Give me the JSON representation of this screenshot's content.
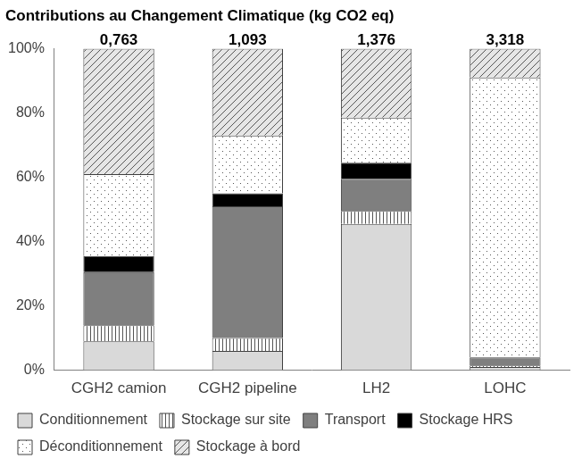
{
  "chart_data": {
    "type": "bar",
    "title": "Contributions au Changement Climatique (kg CO2 eq)",
    "categories": [
      "CGH2 camion",
      "CGH2 pipeline",
      "LH2",
      "LOHC"
    ],
    "totals": [
      0.763,
      1.093,
      1.376,
      3.318
    ],
    "total_labels": [
      "0,763",
      "1,093",
      "1,376",
      "3,318"
    ],
    "series": [
      {
        "name": "Conditionnement",
        "color": "#d9d9d9",
        "values": [
          9,
          6,
          45.5,
          1
        ]
      },
      {
        "name": "Stockage sur site",
        "color": "#ffffff",
        "values": [
          5,
          4,
          4,
          0.5
        ]
      },
      {
        "name": "Transport",
        "color": "#7f7f7f",
        "values": [
          16.5,
          41,
          10,
          2.5
        ]
      },
      {
        "name": "Stockage HRS",
        "color": "#000000",
        "values": [
          5,
          4,
          5,
          0
        ]
      },
      {
        "name": "Déconditionnement",
        "color": "#ffffff",
        "values": [
          25.5,
          18,
          14,
          87
        ]
      },
      {
        "name": "Stockage à bord",
        "color": "#e6e6e6",
        "values": [
          39,
          27,
          21.5,
          9
        ]
      }
    ],
    "ylim": [
      0,
      100
    ],
    "yticks": [
      {
        "value": 0,
        "label": "0%"
      },
      {
        "value": 20,
        "label": "20%"
      },
      {
        "value": 40,
        "label": "40%"
      },
      {
        "value": 60,
        "label": "60%"
      },
      {
        "value": 80,
        "label": "80%"
      },
      {
        "value": 100,
        "label": "100%"
      }
    ],
    "stacked": true,
    "grid": false,
    "legend": "bottom"
  }
}
